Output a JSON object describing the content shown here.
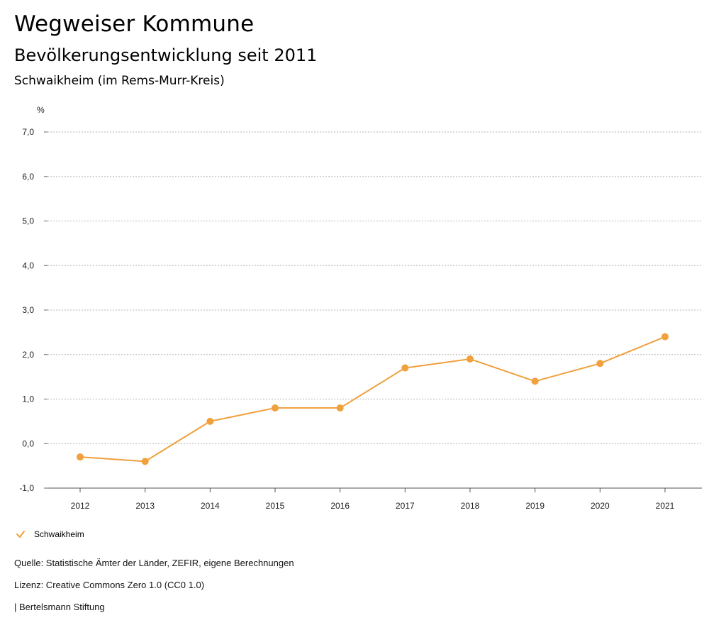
{
  "header": {
    "title": "Wegweiser Kommune",
    "subtitle": "Bevölkerungsentwicklung seit 2011",
    "region": "Schwaikheim (im Rems-Murr-Kreis)"
  },
  "chart_data": {
    "type": "line",
    "title": "Bevölkerungsentwicklung seit 2011",
    "ylabel": "%",
    "xlabel": "",
    "categories": [
      "2012",
      "2013",
      "2014",
      "2015",
      "2016",
      "2017",
      "2018",
      "2019",
      "2020",
      "2021"
    ],
    "series": [
      {
        "name": "Schwaikheim",
        "color": "#f0a03c",
        "values": [
          -0.3,
          -0.4,
          0.5,
          0.8,
          0.8,
          1.7,
          1.9,
          1.4,
          1.8,
          2.4
        ]
      }
    ],
    "yticks": [
      -1.0,
      0.0,
      1.0,
      2.0,
      3.0,
      4.0,
      5.0,
      6.0,
      7.0
    ],
    "ytick_labels": [
      "-1,0",
      "0,0",
      "1,0",
      "2,0",
      "3,0",
      "4,0",
      "5,0",
      "6,0",
      "7,0"
    ],
    "ylim": [
      -1.0,
      7.0
    ],
    "grid": true,
    "legend": "bottom-left"
  },
  "legend": {
    "label": "Schwaikheim"
  },
  "footer": {
    "source": "Quelle: Statistische Ämter der Länder, ZEFIR, eigene Berechnungen",
    "license": "Lizenz: Creative Commons Zero 1.0 (CC0 1.0)",
    "publisher": "| Bertelsmann Stiftung"
  }
}
